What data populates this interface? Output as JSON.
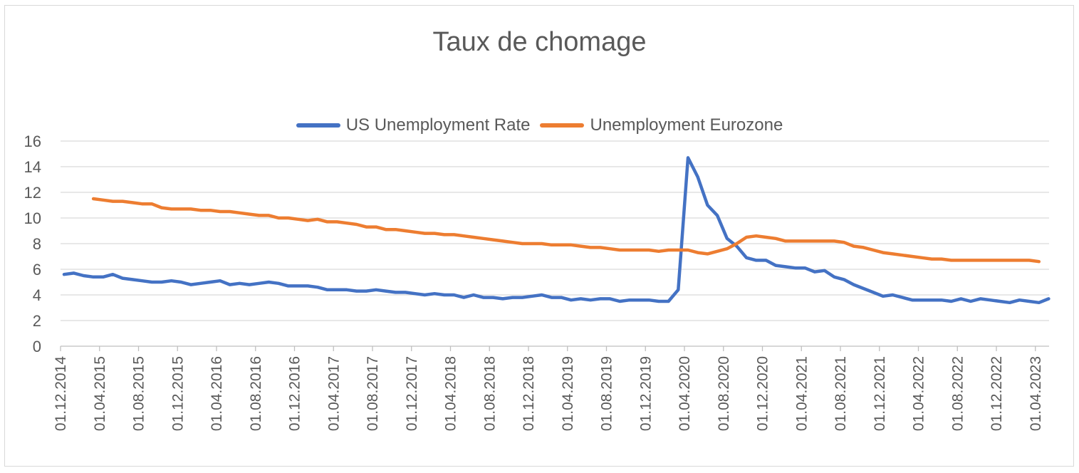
{
  "chart_data": {
    "type": "line",
    "title": "Taux de chomage",
    "xlabel": "",
    "ylabel": "",
    "ylim": [
      0,
      16
    ],
    "yticks": [
      0,
      2,
      4,
      6,
      8,
      10,
      12,
      14,
      16
    ],
    "grid": true,
    "legend_position": "top",
    "x_tick_labels": [
      "01.12.2014",
      "01.04.2015",
      "01.08.2015",
      "01.12.2015",
      "01.04.2016",
      "01.08.2016",
      "01.12.2016",
      "01.04.2017",
      "01.08.2017",
      "01.12.2017",
      "01.04.2018",
      "01.08.2018",
      "01.12.2018",
      "01.04.2019",
      "01.08.2019",
      "01.12.2019",
      "01.04.2020",
      "01.08.2020",
      "01.12.2020",
      "01.04.2021",
      "01.08.2021",
      "01.12.2021",
      "01.04.2022",
      "01.08.2022",
      "01.12.2022",
      "01.04.2023"
    ],
    "series": [
      {
        "name": "US Unemployment Rate",
        "color": "#4472C4",
        "start": "01.12.2014",
        "values": [
          5.6,
          5.7,
          5.5,
          5.4,
          5.4,
          5.6,
          5.3,
          5.2,
          5.1,
          5.0,
          5.0,
          5.1,
          5.0,
          4.8,
          4.9,
          5.0,
          5.1,
          4.8,
          4.9,
          4.8,
          4.9,
          5.0,
          4.9,
          4.7,
          4.7,
          4.7,
          4.6,
          4.4,
          4.4,
          4.4,
          4.3,
          4.3,
          4.4,
          4.3,
          4.2,
          4.2,
          4.1,
          4.0,
          4.1,
          4.0,
          4.0,
          3.8,
          4.0,
          3.8,
          3.8,
          3.7,
          3.8,
          3.8,
          3.9,
          4.0,
          3.8,
          3.8,
          3.6,
          3.7,
          3.6,
          3.7,
          3.7,
          3.5,
          3.6,
          3.6,
          3.6,
          3.5,
          3.5,
          4.4,
          14.7,
          13.2,
          11.0,
          10.2,
          8.4,
          7.8,
          6.9,
          6.7,
          6.7,
          6.3,
          6.2,
          6.1,
          6.1,
          5.8,
          5.9,
          5.4,
          5.2,
          4.8,
          4.5,
          4.2,
          3.9,
          4.0,
          3.8,
          3.6,
          3.6,
          3.6,
          3.6,
          3.5,
          3.7,
          3.5,
          3.7,
          3.6,
          3.5,
          3.4,
          3.6,
          3.5,
          3.4,
          3.7
        ]
      },
      {
        "name": "Unemployment Eurozone",
        "color": "#ED7D31",
        "start": "01.03.2015",
        "values": [
          11.5,
          11.4,
          11.3,
          11.3,
          11.2,
          11.1,
          11.1,
          10.8,
          10.7,
          10.7,
          10.7,
          10.6,
          10.6,
          10.5,
          10.5,
          10.4,
          10.3,
          10.2,
          10.2,
          10.0,
          10.0,
          9.9,
          9.8,
          9.9,
          9.7,
          9.7,
          9.6,
          9.5,
          9.3,
          9.3,
          9.1,
          9.1,
          9.0,
          8.9,
          8.8,
          8.8,
          8.7,
          8.7,
          8.6,
          8.5,
          8.4,
          8.3,
          8.2,
          8.1,
          8.0,
          8.0,
          8.0,
          7.9,
          7.9,
          7.9,
          7.8,
          7.7,
          7.7,
          7.6,
          7.5,
          7.5,
          7.5,
          7.5,
          7.4,
          7.5,
          7.5,
          7.5,
          7.3,
          7.2,
          7.4,
          7.6,
          8.0,
          8.5,
          8.6,
          8.5,
          8.4,
          8.2,
          8.2,
          8.2,
          8.2,
          8.2,
          8.2,
          8.1,
          7.8,
          7.7,
          7.5,
          7.3,
          7.2,
          7.1,
          7.0,
          6.9,
          6.8,
          6.8,
          6.7,
          6.7,
          6.7,
          6.7,
          6.7,
          6.7,
          6.7,
          6.7,
          6.7,
          6.6
        ]
      }
    ]
  }
}
